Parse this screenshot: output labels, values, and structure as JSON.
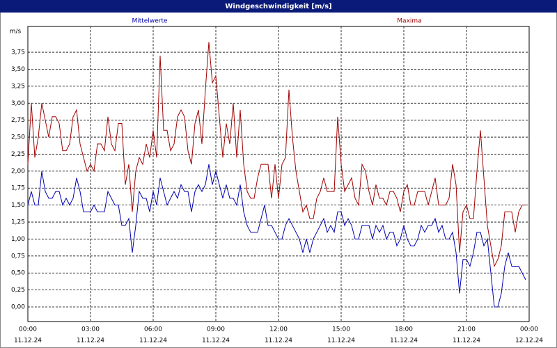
{
  "chart_data": {
    "type": "line",
    "title": "Windgeschwindigkeit [m/s]",
    "unit": "m/s",
    "xlim": [
      0,
      1440
    ],
    "xticks": [
      {
        "value": 0,
        "label": "00:00"
      },
      {
        "value": 180,
        "label": "03:00"
      },
      {
        "value": 360,
        "label": "06:00"
      },
      {
        "value": 540,
        "label": "09:00"
      },
      {
        "value": 720,
        "label": "12:00"
      },
      {
        "value": 900,
        "label": "15:00"
      },
      {
        "value": 1080,
        "label": "18:00"
      },
      {
        "value": 1260,
        "label": "21:00"
      },
      {
        "value": 1440,
        "label": "00:00"
      }
    ],
    "xtick_dates": [
      "11.12.24",
      "11.12.24",
      "11.12.24",
      "11.12.24",
      "11.12.24",
      "11.12.24",
      "11.12.24",
      "11.12.24",
      "12.12.24"
    ],
    "ylim": [
      -0.215,
      4.13
    ],
    "yticks": [
      {
        "value": 0,
        "label": "0,00"
      },
      {
        "value": 0.25,
        "label": "0,25"
      },
      {
        "value": 0.5,
        "label": "0,50"
      },
      {
        "value": 0.75,
        "label": "0,75"
      },
      {
        "value": 1,
        "label": "1,00"
      },
      {
        "value": 1.25,
        "label": "1,25"
      },
      {
        "value": 1.5,
        "label": "1,50"
      },
      {
        "value": 1.75,
        "label": "1,75"
      },
      {
        "value": 2,
        "label": "2,00"
      },
      {
        "value": 2.25,
        "label": "2,25"
      },
      {
        "value": 2.5,
        "label": "2,50"
      },
      {
        "value": 2.75,
        "label": "2,75"
      },
      {
        "value": 3,
        "label": "3,00"
      },
      {
        "value": 3.25,
        "label": "3,25"
      },
      {
        "value": 3.5,
        "label": "3,50"
      },
      {
        "value": 3.75,
        "label": "3,75"
      }
    ],
    "grid": true,
    "x": [
      0,
      10,
      20,
      30,
      40,
      50,
      60,
      70,
      80,
      90,
      100,
      110,
      120,
      130,
      140,
      150,
      160,
      170,
      180,
      190,
      200,
      210,
      220,
      230,
      240,
      250,
      260,
      270,
      280,
      290,
      300,
      310,
      320,
      330,
      340,
      350,
      360,
      370,
      380,
      390,
      400,
      410,
      420,
      430,
      440,
      450,
      460,
      470,
      480,
      490,
      500,
      510,
      520,
      530,
      540,
      550,
      560,
      570,
      580,
      590,
      600,
      610,
      620,
      630,
      640,
      650,
      660,
      670,
      680,
      690,
      700,
      710,
      720,
      730,
      740,
      750,
      760,
      770,
      780,
      790,
      800,
      810,
      820,
      830,
      840,
      850,
      860,
      870,
      880,
      890,
      900,
      910,
      920,
      930,
      940,
      950,
      960,
      970,
      980,
      990,
      1000,
      1010,
      1020,
      1030,
      1040,
      1050,
      1060,
      1070,
      1080,
      1090,
      1100,
      1110,
      1120,
      1130,
      1140,
      1150,
      1160,
      1170,
      1180,
      1190,
      1200,
      1210,
      1220,
      1230,
      1240,
      1250,
      1260,
      1270,
      1280,
      1290,
      1300,
      1310,
      1320,
      1330,
      1340,
      1350,
      1360,
      1370,
      1380,
      1390,
      1400,
      1410,
      1420,
      1430
    ],
    "series": [
      {
        "name": "Mittelwerte",
        "color": "#0000b0",
        "values": [
          1.5,
          1.7,
          1.5,
          1.5,
          2.0,
          1.7,
          1.6,
          1.6,
          1.7,
          1.7,
          1.5,
          1.6,
          1.5,
          1.6,
          1.9,
          1.7,
          1.4,
          1.4,
          1.4,
          1.5,
          1.4,
          1.4,
          1.4,
          1.7,
          1.6,
          1.5,
          1.5,
          1.2,
          1.2,
          1.3,
          0.8,
          1.2,
          1.7,
          1.6,
          1.6,
          1.4,
          1.7,
          1.5,
          1.9,
          1.7,
          1.5,
          1.6,
          1.7,
          1.6,
          1.8,
          1.7,
          1.7,
          1.4,
          1.7,
          1.8,
          1.7,
          1.8,
          2.1,
          1.8,
          2.0,
          1.8,
          1.6,
          1.8,
          1.6,
          1.6,
          1.5,
          1.8,
          1.4,
          1.2,
          1.1,
          1.1,
          1.1,
          1.3,
          1.5,
          1.2,
          1.2,
          1.1,
          1.0,
          1.0,
          1.2,
          1.3,
          1.2,
          1.1,
          1.0,
          0.8,
          1.0,
          0.8,
          1.0,
          1.1,
          1.2,
          1.3,
          1.1,
          1.2,
          1.1,
          1.4,
          1.4,
          1.2,
          1.3,
          1.2,
          1.0,
          1.0,
          1.2,
          1.2,
          1.2,
          1.0,
          1.2,
          1.1,
          1.2,
          1.0,
          1.1,
          1.1,
          0.9,
          1.0,
          1.2,
          1.0,
          0.9,
          0.9,
          1.0,
          1.2,
          1.1,
          1.2,
          1.2,
          1.3,
          1.1,
          1.2,
          1.0,
          1.0,
          1.1,
          0.8,
          0.2,
          0.7,
          0.7,
          0.6,
          0.8,
          1.1,
          1.1,
          0.9,
          1.0,
          0.5,
          0.0,
          0.0,
          0.2,
          0.6,
          0.8,
          0.6,
          0.6,
          0.6,
          0.5,
          0.4
        ]
      },
      {
        "name": "Maxima",
        "color": "#a00000",
        "values": [
          2.1,
          3.0,
          2.2,
          2.5,
          3.0,
          2.75,
          2.5,
          2.8,
          2.8,
          2.7,
          2.3,
          2.3,
          2.4,
          2.8,
          2.9,
          2.4,
          2.2,
          2.0,
          2.1,
          2.0,
          2.4,
          2.4,
          2.3,
          2.8,
          2.4,
          2.3,
          2.7,
          2.7,
          1.8,
          2.1,
          1.4,
          2.0,
          2.2,
          2.1,
          2.4,
          2.2,
          2.6,
          2.2,
          3.7,
          2.6,
          2.6,
          2.3,
          2.4,
          2.8,
          2.9,
          2.8,
          2.3,
          2.1,
          2.7,
          2.9,
          2.4,
          3.2,
          3.9,
          3.3,
          3.4,
          2.8,
          2.2,
          2.7,
          2.4,
          3.0,
          2.2,
          2.9,
          2.1,
          1.7,
          1.6,
          1.6,
          1.9,
          2.1,
          2.1,
          2.1,
          1.6,
          2.1,
          1.6,
          2.1,
          2.2,
          3.2,
          2.5,
          2.0,
          1.7,
          1.4,
          1.5,
          1.3,
          1.3,
          1.6,
          1.7,
          1.9,
          1.7,
          1.7,
          1.7,
          2.8,
          2.1,
          1.7,
          1.8,
          1.9,
          1.6,
          1.5,
          2.1,
          2.0,
          1.7,
          1.5,
          1.8,
          1.6,
          1.6,
          1.5,
          1.7,
          1.7,
          1.6,
          1.4,
          1.7,
          1.8,
          1.5,
          1.5,
          1.7,
          1.7,
          1.7,
          1.5,
          1.7,
          1.9,
          1.5,
          1.5,
          1.5,
          1.6,
          2.1,
          1.8,
          0.8,
          1.4,
          1.5,
          1.3,
          1.3,
          2.0,
          2.6,
          1.9,
          1.2,
          0.9,
          0.6,
          0.7,
          0.9,
          1.4,
          1.4,
          1.4,
          1.1,
          1.4,
          1.5,
          1.5
        ]
      }
    ]
  }
}
